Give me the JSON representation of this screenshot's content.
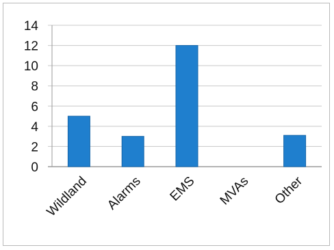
{
  "chart_data": {
    "type": "bar",
    "categories": [
      "Wildland",
      "Alarms",
      "EMS",
      "MVAs",
      "Other"
    ],
    "values": [
      5,
      3,
      12,
      0,
      3.1
    ],
    "ylim": [
      0,
      14
    ],
    "yticks": [
      0,
      2,
      4,
      6,
      8,
      10,
      12,
      14
    ],
    "grid": true,
    "legend": "none",
    "colors": {
      "bar": "#1f7fce",
      "bar_edge": "#1565a8",
      "grid": "#c8c8c8",
      "axis": "#9a9a9a"
    }
  }
}
